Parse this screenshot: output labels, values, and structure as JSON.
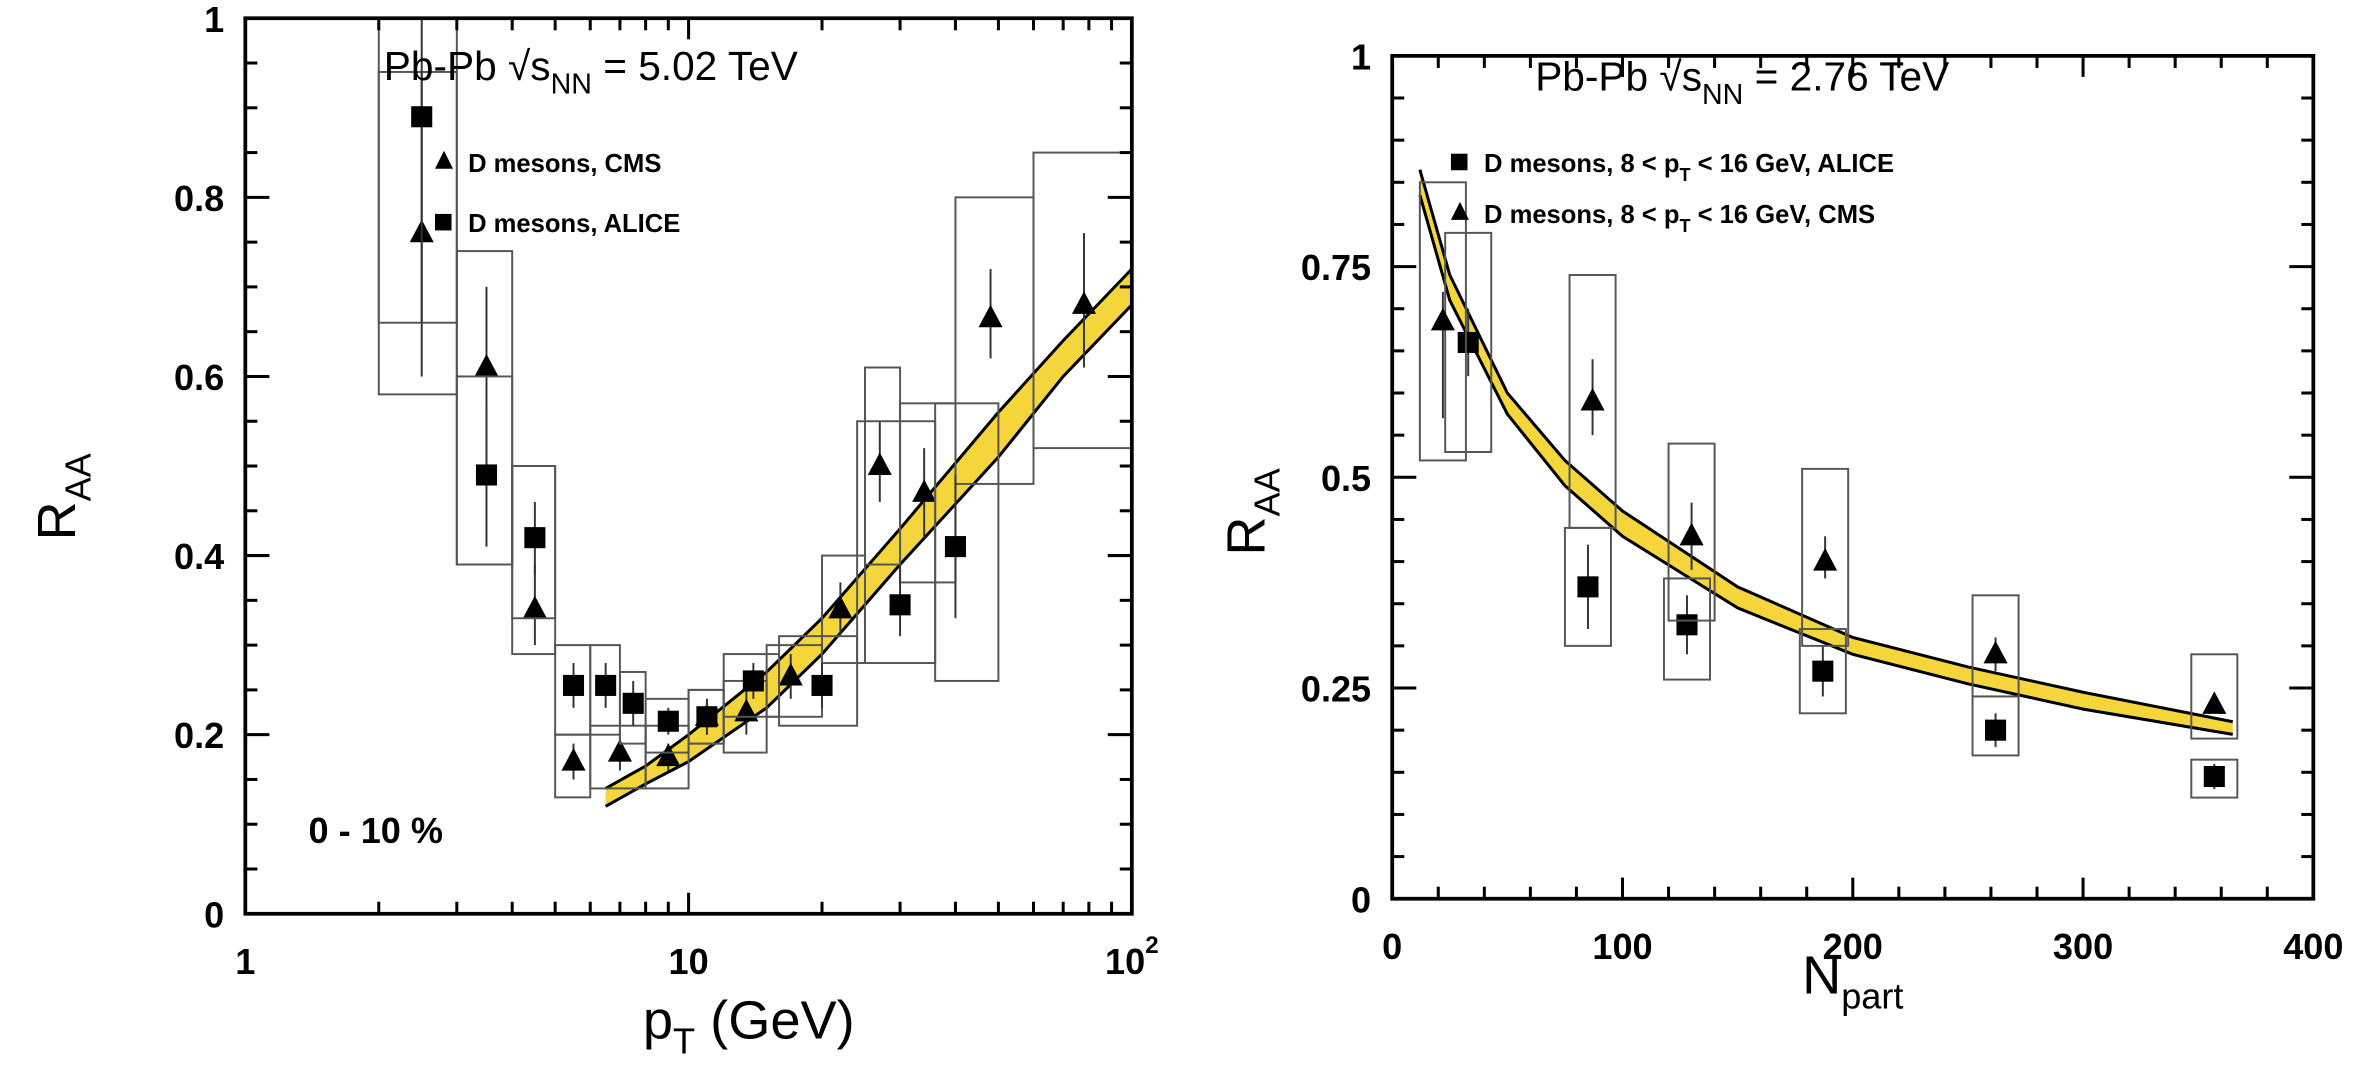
{
  "chart_data": [
    {
      "type": "scatter",
      "xscale": "log",
      "title": "Pb-Pb  √s_NN = 5.02 TeV",
      "title_parts": {
        "system": "Pb-Pb",
        "sqrt": "√s",
        "sub": "NN",
        "value": "= 5.02 TeV"
      },
      "xlabel": "p_T (GeV)",
      "xlabel_parts": {
        "main": "p",
        "sub": "T",
        "rest": " (GeV)"
      },
      "ylabel": "R_AA",
      "ylabel_parts": {
        "main": "R",
        "sub": "AA"
      },
      "xlim": [
        1,
        100
      ],
      "ylim": [
        0,
        1
      ],
      "xticks": [
        {
          "value": 1,
          "label": "1"
        },
        {
          "value": 10,
          "label": "10"
        },
        {
          "value": 100,
          "label": "10",
          "sup": "2"
        }
      ],
      "yticks": [
        {
          "value": 0,
          "label": "0"
        },
        {
          "value": 0.2,
          "label": "0.2"
        },
        {
          "value": 0.4,
          "label": "0.4"
        },
        {
          "value": 0.6,
          "label": "0.6"
        },
        {
          "value": 0.8,
          "label": "0.8"
        },
        {
          "value": 1,
          "label": "1"
        }
      ],
      "annotation": "0 - 10 %",
      "legend_position": "top-right",
      "series": [
        {
          "name": "D mesons, CMS",
          "marker": "triangle",
          "points": [
            {
              "x": 2.5,
              "y": 0.76,
              "stat": [
                0.6,
                0.94
              ],
              "bin": [
                2,
                3
              ],
              "sys": [
                0.58,
                0.94
              ]
            },
            {
              "x": 3.5,
              "y": 0.61,
              "stat": [
                0.5,
                0.7
              ],
              "bin": [
                3,
                4
              ],
              "sys": [
                0.39,
                0.74
              ]
            },
            {
              "x": 4.5,
              "y": 0.34,
              "stat": [
                0.3,
                0.39
              ],
              "bin": [
                4,
                5
              ],
              "sys": [
                0.29,
                0.5
              ]
            },
            {
              "x": 5.5,
              "y": 0.17,
              "stat": [
                0.15,
                0.19
              ],
              "bin": [
                5,
                6
              ],
              "sys": [
                0.13,
                0.2
              ]
            },
            {
              "x": 7,
              "y": 0.18,
              "stat": [
                0.16,
                0.2
              ],
              "bin": [
                6,
                8
              ],
              "sys": [
                0.14,
                0.21
              ]
            },
            {
              "x": 9,
              "y": 0.175,
              "stat": [
                0.16,
                0.19
              ],
              "bin": [
                8,
                10
              ],
              "sys": [
                0.14,
                0.21
              ]
            },
            {
              "x": 11,
              "y": 0.22,
              "stat": [
                0.2,
                0.24
              ],
              "bin": [
                10,
                12
              ],
              "sys": [
                0.19,
                0.25
              ]
            },
            {
              "x": 13.5,
              "y": 0.225,
              "stat": [
                0.2,
                0.25
              ],
              "bin": [
                12,
                15
              ],
              "sys": [
                0.18,
                0.26
              ]
            },
            {
              "x": 17,
              "y": 0.265,
              "stat": [
                0.24,
                0.29
              ],
              "bin": [
                15,
                20
              ],
              "sys": [
                0.22,
                0.3
              ]
            },
            {
              "x": 22,
              "y": 0.34,
              "stat": [
                0.31,
                0.37
              ],
              "bin": [
                20,
                25
              ],
              "sys": [
                0.28,
                0.4
              ]
            },
            {
              "x": 27,
              "y": 0.5,
              "stat": [
                0.46,
                0.55
              ],
              "bin": [
                25,
                30
              ],
              "sys": [
                0.39,
                0.61
              ]
            },
            {
              "x": 34,
              "y": 0.47,
              "stat": [
                0.42,
                0.52
              ],
              "bin": [
                30,
                40
              ],
              "sys": [
                0.37,
                0.57
              ]
            },
            {
              "x": 48,
              "y": 0.665,
              "stat": [
                0.62,
                0.72
              ],
              "bin": [
                40,
                60
              ],
              "sys": [
                0.48,
                0.8
              ]
            },
            {
              "x": 78,
              "y": 0.68,
              "stat": [
                0.61,
                0.76
              ],
              "bin": [
                60,
                100
              ],
              "sys": [
                0.52,
                0.85
              ]
            }
          ]
        },
        {
          "name": "D mesons, ALICE",
          "marker": "square",
          "points": [
            {
              "x": 2.5,
              "y": 0.89,
              "stat": [
                0.66,
                1.0
              ],
              "bin": [
                2,
                3
              ],
              "sys": [
                0.66,
                1.0
              ]
            },
            {
              "x": 3.5,
              "y": 0.49,
              "stat": [
                0.41,
                0.57
              ],
              "bin": [
                3,
                4
              ],
              "sys": [
                0.39,
                0.6
              ]
            },
            {
              "x": 4.5,
              "y": 0.42,
              "stat": [
                0.38,
                0.46
              ],
              "bin": [
                4,
                5
              ],
              "sys": [
                0.33,
                0.5
              ]
            },
            {
              "x": 5.5,
              "y": 0.255,
              "stat": [
                0.23,
                0.28
              ],
              "bin": [
                5,
                6
              ],
              "sys": [
                0.2,
                0.3
              ]
            },
            {
              "x": 6.5,
              "y": 0.255,
              "stat": [
                0.23,
                0.28
              ],
              "bin": [
                6,
                7
              ],
              "sys": [
                0.2,
                0.3
              ]
            },
            {
              "x": 7.5,
              "y": 0.235,
              "stat": [
                0.21,
                0.26
              ],
              "bin": [
                7,
                8
              ],
              "sys": [
                0.19,
                0.27
              ]
            },
            {
              "x": 9,
              "y": 0.215,
              "stat": [
                0.2,
                0.23
              ],
              "bin": [
                8,
                10
              ],
              "sys": [
                0.18,
                0.24
              ]
            },
            {
              "x": 11,
              "y": 0.22,
              "stat": [
                0.2,
                0.24
              ],
              "bin": [
                10,
                12
              ],
              "sys": [
                0.19,
                0.25
              ]
            },
            {
              "x": 14,
              "y": 0.26,
              "stat": [
                0.24,
                0.28
              ],
              "bin": [
                12,
                16
              ],
              "sys": [
                0.22,
                0.29
              ]
            },
            {
              "x": 20,
              "y": 0.255,
              "stat": [
                0.23,
                0.28
              ],
              "bin": [
                16,
                24
              ],
              "sys": [
                0.21,
                0.31
              ]
            },
            {
              "x": 30,
              "y": 0.345,
              "stat": [
                0.31,
                0.39
              ],
              "bin": [
                24,
                36
              ],
              "sys": [
                0.28,
                0.55
              ]
            },
            {
              "x": 40,
              "y": 0.41,
              "stat": [
                0.33,
                0.49
              ],
              "bin": [
                36,
                50
              ],
              "sys": [
                0.26,
                0.57
              ]
            }
          ]
        }
      ],
      "model_band": {
        "x": [
          6.5,
          8,
          10,
          15,
          20,
          30,
          50,
          70,
          100
        ],
        "upper": [
          0.14,
          0.165,
          0.2,
          0.27,
          0.33,
          0.43,
          0.56,
          0.64,
          0.72
        ],
        "lower": [
          0.12,
          0.145,
          0.17,
          0.23,
          0.29,
          0.39,
          0.51,
          0.6,
          0.68
        ],
        "color": "#f2cf1a"
      }
    },
    {
      "type": "scatter",
      "title": "Pb-Pb  √s_NN = 2.76 TeV",
      "title_parts": {
        "system": "Pb-Pb",
        "sqrt": "√s",
        "sub": "NN",
        "value": "= 2.76 TeV"
      },
      "xlabel": "N_part",
      "xlabel_parts": {
        "main": "N",
        "sub": "part"
      },
      "ylabel": "R_AA",
      "ylabel_parts": {
        "main": "R",
        "sub": "AA"
      },
      "xlim": [
        0,
        400
      ],
      "ylim": [
        0,
        1
      ],
      "xticks": [
        {
          "value": 0,
          "label": "0"
        },
        {
          "value": 100,
          "label": "100"
        },
        {
          "value": 200,
          "label": "200"
        },
        {
          "value": 300,
          "label": "300"
        },
        {
          "value": 400,
          "label": "400"
        }
      ],
      "yticks": [
        {
          "value": 0,
          "label": "0"
        },
        {
          "value": 0.25,
          "label": "0.25"
        },
        {
          "value": 0.5,
          "label": "0.5"
        },
        {
          "value": 0.75,
          "label": "0.75"
        },
        {
          "value": 1,
          "label": "1"
        }
      ],
      "legend_position": "top-right",
      "series": [
        {
          "name": "D mesons, 8 < p_T < 16 GeV, ALICE",
          "marker": "square",
          "legend_parts": {
            "pre": "D mesons, 8 < p",
            "sub": "T",
            "post": " < 16 GeV, ALICE"
          },
          "points": [
            {
              "x": 33,
              "y": 0.66,
              "stat": [
                0.62,
                0.7
              ],
              "bin": [
                23,
                43
              ],
              "sys": [
                0.53,
                0.79
              ]
            },
            {
              "x": 85,
              "y": 0.37,
              "stat": [
                0.32,
                0.42
              ],
              "bin": [
                75,
                95
              ],
              "sys": [
                0.3,
                0.44
              ]
            },
            {
              "x": 128,
              "y": 0.325,
              "stat": [
                0.29,
                0.36
              ],
              "bin": [
                118,
                138
              ],
              "sys": [
                0.26,
                0.38
              ]
            },
            {
              "x": 187,
              "y": 0.27,
              "stat": [
                0.24,
                0.3
              ],
              "bin": [
                177,
                197
              ],
              "sys": [
                0.22,
                0.32
              ]
            },
            {
              "x": 262,
              "y": 0.2,
              "stat": [
                0.18,
                0.22
              ],
              "bin": [
                252,
                272
              ],
              "sys": [
                0.17,
                0.24
              ]
            },
            {
              "x": 357,
              "y": 0.145,
              "stat": [
                0.13,
                0.16
              ],
              "bin": [
                347,
                367
              ],
              "sys": [
                0.12,
                0.165
              ]
            }
          ]
        },
        {
          "name": "D mesons, 8 < p_T < 16 GeV, CMS",
          "marker": "triangle",
          "legend_parts": {
            "pre": "D mesons, 8 < p",
            "sub": "T",
            "post": " < 16 GeV, CMS"
          },
          "points": [
            {
              "x": 22,
              "y": 0.685,
              "stat": [
                0.57,
                0.72
              ],
              "bin": [
                12,
                32
              ],
              "sys": [
                0.52,
                0.85
              ]
            },
            {
              "x": 87,
              "y": 0.59,
              "stat": [
                0.55,
                0.64
              ],
              "bin": [
                77,
                97
              ],
              "sys": [
                0.44,
                0.74
              ]
            },
            {
              "x": 130,
              "y": 0.43,
              "stat": [
                0.39,
                0.47
              ],
              "bin": [
                120,
                140
              ],
              "sys": [
                0.33,
                0.54
              ]
            },
            {
              "x": 188,
              "y": 0.4,
              "stat": [
                0.38,
                0.43
              ],
              "bin": [
                178,
                198
              ],
              "sys": [
                0.3,
                0.51
              ]
            },
            {
              "x": 262,
              "y": 0.29,
              "stat": [
                0.27,
                0.31
              ],
              "bin": [
                252,
                272
              ],
              "sys": [
                0.24,
                0.36
              ]
            },
            {
              "x": 357,
              "y": 0.23,
              "stat": [
                0.22,
                0.24
              ],
              "bin": [
                347,
                367
              ],
              "sys": [
                0.19,
                0.29
              ]
            }
          ]
        }
      ],
      "model_band": {
        "x": [
          12,
          25,
          50,
          75,
          100,
          150,
          200,
          250,
          300,
          365
        ],
        "upper": [
          0.865,
          0.74,
          0.6,
          0.52,
          0.46,
          0.37,
          0.31,
          0.275,
          0.245,
          0.21
        ],
        "lower": [
          0.835,
          0.71,
          0.575,
          0.49,
          0.43,
          0.345,
          0.29,
          0.255,
          0.225,
          0.195
        ],
        "color": "#f2cf1a"
      }
    }
  ]
}
